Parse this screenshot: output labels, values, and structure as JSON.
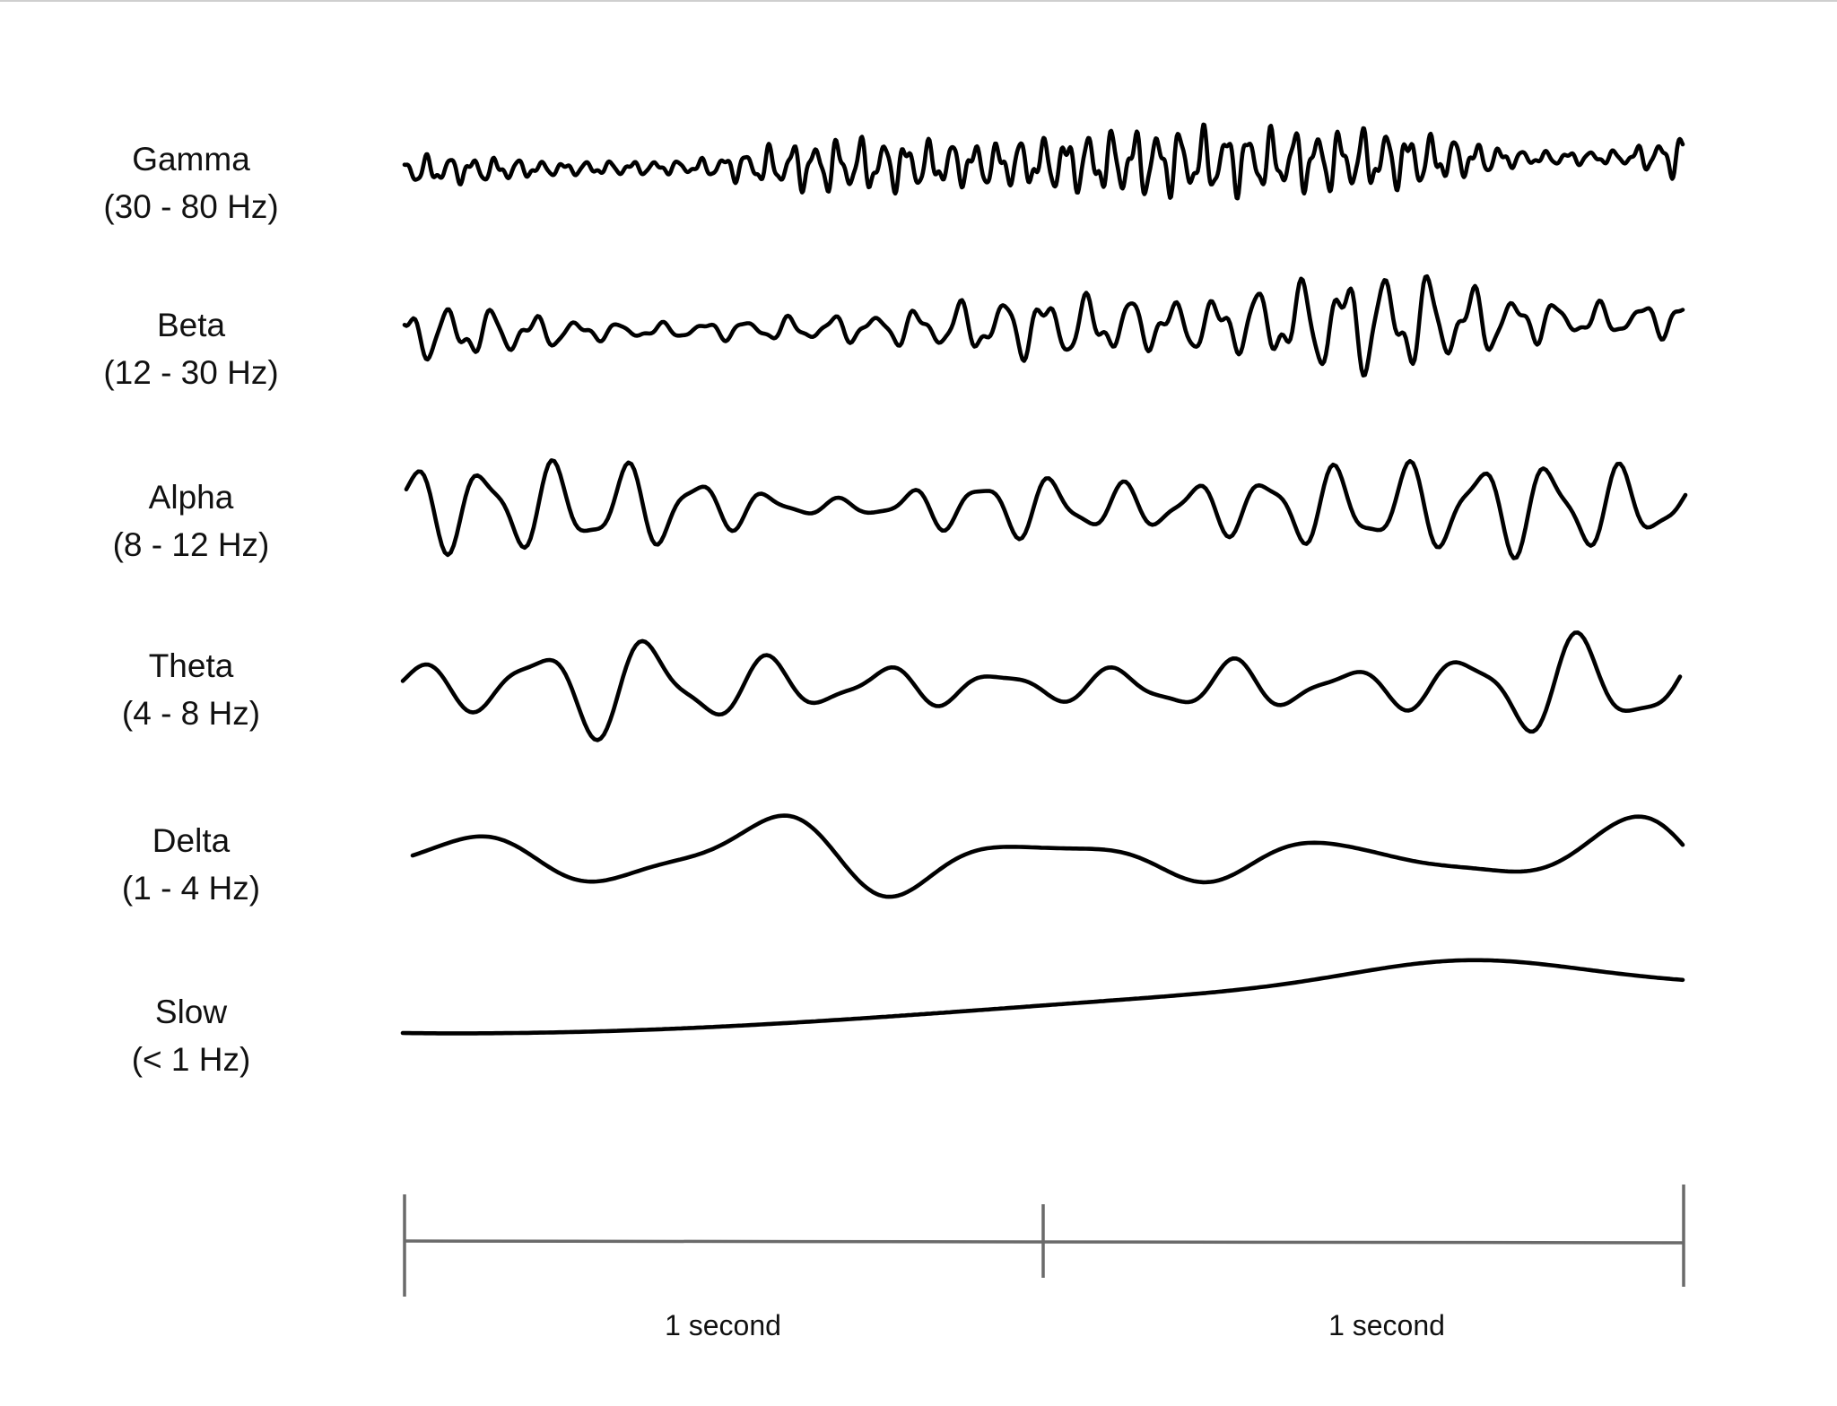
{
  "bands": [
    {
      "name": "Gamma",
      "range": "(30 - 80 Hz)",
      "freq": 28,
      "amp": 0.85,
      "trend": "rising",
      "seed": 1
    },
    {
      "name": "Beta",
      "range": "(12 - 30 Hz)",
      "freq": 15,
      "amp": 0.9,
      "trend": "rising",
      "seed": 2
    },
    {
      "name": "Alpha",
      "range": "(8 - 12 Hz)",
      "freq": 9,
      "amp": 1.0,
      "trend": "varying",
      "seed": 3
    },
    {
      "name": "Theta",
      "range": "(4 - 8 Hz)",
      "freq": 5.5,
      "amp": 1.0,
      "trend": "varying",
      "seed": 4
    },
    {
      "name": "Delta",
      "range": "(1 - 4 Hz)",
      "freq": 2.2,
      "amp": 1.0,
      "trend": "varying",
      "seed": 5
    },
    {
      "name": "Slow",
      "range": "(< 1 Hz)",
      "freq": 0.55,
      "amp": 1.0,
      "trend": "slow",
      "seed": 6
    }
  ],
  "timescale": {
    "segments": [
      {
        "label": "1 second"
      },
      {
        "label": "1 second"
      }
    ]
  },
  "colors": {
    "wave": "#000000",
    "scale": "#6a6a6a",
    "text": "#111111"
  }
}
